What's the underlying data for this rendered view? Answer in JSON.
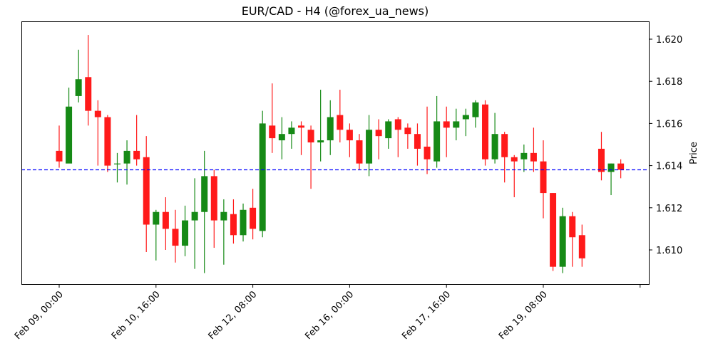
{
  "chart_data": {
    "type": "candlestick",
    "title": "EUR/CAD - H4 (@forex_ua_news)",
    "xlabel": "",
    "ylabel": "Price",
    "ylim": [
      1.6083,
      1.6208
    ],
    "yticks": [
      "1.610",
      "1.612",
      "1.614",
      "1.616",
      "1.618",
      "1.620"
    ],
    "xticks": [
      "Feb 09, 00:00",
      "Feb 10, 16:00",
      "Feb 12, 08:00",
      "Feb 16, 00:00",
      "Feb 17, 16:00",
      "Feb 19, 08:00",
      ""
    ],
    "reference_line": {
      "value": 1.6138,
      "color": "#0000ff",
      "style": "dashed"
    },
    "colors": {
      "up": "#168a16",
      "down": "#ff1a1a"
    },
    "candles": [
      {
        "i": 0,
        "o": 1.6147,
        "h": 1.6159,
        "l": 1.6139,
        "c": 1.6142
      },
      {
        "i": 1,
        "o": 1.6141,
        "h": 1.6177,
        "l": 1.6143,
        "c": 1.6168
      },
      {
        "i": 2,
        "o": 1.6173,
        "h": 1.6195,
        "l": 1.617,
        "c": 1.6181
      },
      {
        "i": 3,
        "o": 1.6182,
        "h": 1.6202,
        "l": 1.6159,
        "c": 1.6166
      },
      {
        "i": 4,
        "o": 1.6166,
        "h": 1.6171,
        "l": 1.614,
        "c": 1.6163
      },
      {
        "i": 5,
        "o": 1.6163,
        "h": 1.6164,
        "l": 1.6137,
        "c": 1.614
      },
      {
        "i": 6,
        "o": 1.6141,
        "h": 1.6146,
        "l": 1.6132,
        "c": 1.6141
      },
      {
        "i": 7,
        "o": 1.6141,
        "h": 1.6152,
        "l": 1.6131,
        "c": 1.6147
      },
      {
        "i": 8,
        "o": 1.6147,
        "h": 1.6164,
        "l": 1.614,
        "c": 1.6143
      },
      {
        "i": 9,
        "o": 1.6144,
        "h": 1.6154,
        "l": 1.6099,
        "c": 1.6112
      },
      {
        "i": 10,
        "o": 1.6112,
        "h": 1.6119,
        "l": 1.6095,
        "c": 1.6118
      },
      {
        "i": 11,
        "o": 1.6118,
        "h": 1.6125,
        "l": 1.61,
        "c": 1.611
      },
      {
        "i": 12,
        "o": 1.611,
        "h": 1.6119,
        "l": 1.6094,
        "c": 1.6102
      },
      {
        "i": 13,
        "o": 1.6102,
        "h": 1.6121,
        "l": 1.6097,
        "c": 1.6114
      },
      {
        "i": 14,
        "o": 1.6114,
        "h": 1.6134,
        "l": 1.6091,
        "c": 1.6118
      },
      {
        "i": 15,
        "o": 1.6118,
        "h": 1.6147,
        "l": 1.6089,
        "c": 1.6135
      },
      {
        "i": 16,
        "o": 1.6135,
        "h": 1.6138,
        "l": 1.6101,
        "c": 1.6114
      },
      {
        "i": 17,
        "o": 1.6114,
        "h": 1.6124,
        "l": 1.6093,
        "c": 1.6118
      },
      {
        "i": 18,
        "o": 1.6117,
        "h": 1.6124,
        "l": 1.6103,
        "c": 1.6107
      },
      {
        "i": 19,
        "o": 1.6107,
        "h": 1.6122,
        "l": 1.6104,
        "c": 1.6119
      },
      {
        "i": 20,
        "o": 1.612,
        "h": 1.6129,
        "l": 1.6105,
        "c": 1.611
      },
      {
        "i": 21,
        "o": 1.6109,
        "h": 1.6166,
        "l": 1.6106,
        "c": 1.616
      },
      {
        "i": 22,
        "o": 1.6159,
        "h": 1.6179,
        "l": 1.6146,
        "c": 1.6153
      },
      {
        "i": 23,
        "o": 1.6152,
        "h": 1.6163,
        "l": 1.6143,
        "c": 1.6155
      },
      {
        "i": 24,
        "o": 1.6155,
        "h": 1.6161,
        "l": 1.6148,
        "c": 1.6158
      },
      {
        "i": 25,
        "o": 1.6159,
        "h": 1.6161,
        "l": 1.6145,
        "c": 1.6158
      },
      {
        "i": 26,
        "o": 1.6157,
        "h": 1.6159,
        "l": 1.6129,
        "c": 1.6151
      },
      {
        "i": 27,
        "o": 1.6151,
        "h": 1.6176,
        "l": 1.6142,
        "c": 1.6152
      },
      {
        "i": 28,
        "o": 1.6152,
        "h": 1.6171,
        "l": 1.6145,
        "c": 1.6163
      },
      {
        "i": 29,
        "o": 1.6164,
        "h": 1.6176,
        "l": 1.6151,
        "c": 1.6157
      },
      {
        "i": 30,
        "o": 1.6157,
        "h": 1.616,
        "l": 1.6144,
        "c": 1.6152
      },
      {
        "i": 31,
        "o": 1.6152,
        "h": 1.6155,
        "l": 1.6138,
        "c": 1.6141
      },
      {
        "i": 32,
        "o": 1.6141,
        "h": 1.6164,
        "l": 1.6135,
        "c": 1.6157
      },
      {
        "i": 33,
        "o": 1.6157,
        "h": 1.6162,
        "l": 1.6143,
        "c": 1.6154
      },
      {
        "i": 34,
        "o": 1.6153,
        "h": 1.6162,
        "l": 1.6148,
        "c": 1.6161
      },
      {
        "i": 35,
        "o": 1.6162,
        "h": 1.6163,
        "l": 1.6144,
        "c": 1.6157
      },
      {
        "i": 36,
        "o": 1.6158,
        "h": 1.616,
        "l": 1.6148,
        "c": 1.6155
      },
      {
        "i": 37,
        "o": 1.6155,
        "h": 1.616,
        "l": 1.614,
        "c": 1.6148
      },
      {
        "i": 38,
        "o": 1.6149,
        "h": 1.6168,
        "l": 1.6136,
        "c": 1.6143
      },
      {
        "i": 39,
        "o": 1.6142,
        "h": 1.6173,
        "l": 1.6139,
        "c": 1.6161
      },
      {
        "i": 40,
        "o": 1.6161,
        "h": 1.6168,
        "l": 1.6144,
        "c": 1.6158
      },
      {
        "i": 41,
        "o": 1.6158,
        "h": 1.6167,
        "l": 1.6152,
        "c": 1.6161
      },
      {
        "i": 42,
        "o": 1.6162,
        "h": 1.6167,
        "l": 1.6154,
        "c": 1.6164
      },
      {
        "i": 43,
        "o": 1.6163,
        "h": 1.6171,
        "l": 1.6158,
        "c": 1.617
      },
      {
        "i": 44,
        "o": 1.6169,
        "h": 1.6171,
        "l": 1.614,
        "c": 1.6143
      },
      {
        "i": 45,
        "o": 1.6143,
        "h": 1.6165,
        "l": 1.6141,
        "c": 1.6155
      },
      {
        "i": 46,
        "o": 1.6155,
        "h": 1.6156,
        "l": 1.6132,
        "c": 1.6144
      },
      {
        "i": 47,
        "o": 1.6144,
        "h": 1.6145,
        "l": 1.6125,
        "c": 1.6142
      },
      {
        "i": 48,
        "o": 1.6143,
        "h": 1.615,
        "l": 1.6137,
        "c": 1.6146
      },
      {
        "i": 49,
        "o": 1.6146,
        "h": 1.6158,
        "l": 1.6137,
        "c": 1.6142
      },
      {
        "i": 50,
        "o": 1.6142,
        "h": 1.6152,
        "l": 1.6115,
        "c": 1.6127
      },
      {
        "i": 51,
        "o": 1.6127,
        "h": 1.6127,
        "l": 1.609,
        "c": 1.6092
      },
      {
        "i": 52,
        "o": 1.6092,
        "h": 1.612,
        "l": 1.6089,
        "c": 1.6116
      },
      {
        "i": 53,
        "o": 1.6116,
        "h": 1.6118,
        "l": 1.6092,
        "c": 1.6106
      },
      {
        "i": 54,
        "o": 1.6107,
        "h": 1.6112,
        "l": 1.6092,
        "c": 1.6096
      },
      {
        "i": 56,
        "o": 1.6148,
        "h": 1.6156,
        "l": 1.6133,
        "c": 1.6137
      },
      {
        "i": 57,
        "o": 1.6137,
        "h": 1.6141,
        "l": 1.6126,
        "c": 1.6141
      },
      {
        "i": 58,
        "o": 1.6141,
        "h": 1.6143,
        "l": 1.6134,
        "c": 1.6138
      }
    ]
  }
}
